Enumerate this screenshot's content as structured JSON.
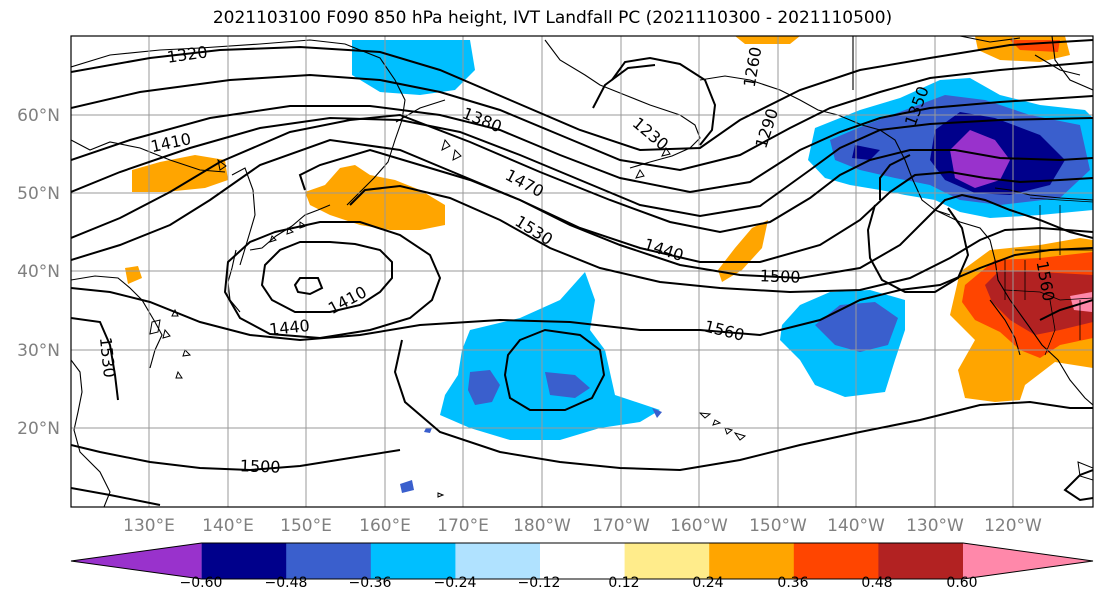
{
  "title": "2021103100 F090 850 hPa height, IVT Landfall PC (2021110300 - 2021110500)",
  "latitude_labels": [
    "60°N",
    "50°N",
    "40°N",
    "30°N",
    "20°N"
  ],
  "longitude_labels": [
    "130°E",
    "140°E",
    "150°E",
    "160°E",
    "170°E",
    "180°W",
    "170°W",
    "160°W",
    "150°W",
    "140°W",
    "130°W",
    "120°W"
  ],
  "contour_labels": [
    "1320",
    "1410",
    "1380",
    "1230",
    "1260",
    "1290",
    "1350",
    "1470",
    "1530",
    "1440",
    "1500",
    "1440",
    "1410",
    "1560",
    "1530",
    "1500",
    "1560"
  ],
  "colorbar": {
    "ticks": [
      "−0.60",
      "−0.48",
      "−0.36",
      "−0.24",
      "−0.12",
      "0.12",
      "0.24",
      "0.36",
      "0.48",
      "0.60"
    ],
    "colors": [
      "#9932cc",
      "#00008b",
      "#3a5fcd",
      "#00bfff",
      "#b0e2ff",
      "#ffffff",
      "#ffec8b",
      "#ffa500",
      "#ff4500",
      "#b22222",
      "#ff88aa"
    ]
  },
  "colors": {
    "frame": "#000000",
    "grid": "#999999",
    "axis_labels": "#808080"
  }
}
